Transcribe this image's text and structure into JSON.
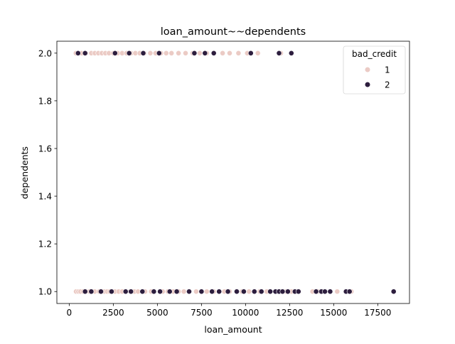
{
  "chart_data": {
    "type": "scatter",
    "title": "loan_amount~~dependents",
    "xlabel": "loan_amount",
    "ylabel": "dependents",
    "xlim": [
      -700,
      19300
    ],
    "ylim": [
      0.95,
      2.05
    ],
    "xticks": [
      0,
      2500,
      5000,
      7500,
      10000,
      12500,
      15000,
      17500
    ],
    "xtick_labels": [
      "0",
      "2500",
      "5000",
      "7500",
      "10000",
      "12500",
      "15000",
      "17500"
    ],
    "yticks": [
      1.0,
      1.2,
      1.4,
      1.6,
      1.8,
      2.0
    ],
    "ytick_labels": [
      "1.0",
      "1.2",
      "1.4",
      "1.6",
      "1.8",
      "2.0"
    ],
    "grid": false,
    "legend": {
      "title": "bad_credit",
      "placement": "top-right",
      "entries": [
        {
          "label": "1",
          "color": "#ebcbc5"
        },
        {
          "label": "2",
          "color": "#2d1e3e"
        }
      ]
    },
    "series": [
      {
        "name": "1",
        "color": "#ebcbc5",
        "x": [
          390,
          520,
          640,
          800,
          960,
          1150,
          1300,
          1450,
          1700,
          1850,
          2000,
          2150,
          2300,
          2600,
          2800,
          3000,
          3200,
          3450,
          3700,
          3900,
          4300,
          4650,
          5300,
          5600,
          5900,
          6200,
          6500,
          6800,
          7200,
          7500,
          7800,
          8200,
          8800,
          9100,
          9500,
          9800,
          10200,
          10500,
          10800,
          11200,
          11700,
          12300,
          12600,
          13800,
          14100,
          15200,
          16000,
          380,
          560,
          700,
          950,
          1250,
          1450,
          1650,
          1850,
          2050,
          2250,
          2500,
          2750,
          3000,
          3250,
          3500,
          3750,
          4000,
          4250,
          4600,
          4900,
          5200,
          5500,
          5800,
          6200,
          6600,
          7000,
          7400,
          7800,
          8200,
          8700,
          9100,
          9600,
          10100,
          10700,
          12000
        ],
        "y": [
          1,
          1,
          1,
          1,
          1,
          1,
          1,
          1,
          1,
          1,
          1,
          1,
          1,
          1,
          1,
          1,
          1,
          1,
          1,
          1,
          1,
          1,
          1,
          1,
          1,
          1,
          1,
          1,
          1,
          1,
          1,
          1,
          1,
          1,
          1,
          1,
          1,
          1,
          1,
          1,
          1,
          1,
          1,
          1,
          1,
          1,
          1,
          2,
          2,
          2,
          2,
          2,
          2,
          2,
          2,
          2,
          2,
          2,
          2,
          2,
          2,
          2,
          2,
          2,
          2,
          2,
          2,
          2,
          2,
          2,
          2,
          2,
          2,
          2,
          2,
          2,
          2,
          2,
          2,
          2,
          2,
          2
        ]
      },
      {
        "name": "2",
        "color": "#2d1e3e",
        "x": [
          900,
          1250,
          1800,
          2400,
          3200,
          3500,
          4150,
          4800,
          5150,
          5700,
          6100,
          6800,
          7500,
          8100,
          8500,
          9000,
          9500,
          9900,
          10500,
          10900,
          11400,
          11700,
          11900,
          12100,
          12400,
          12800,
          13000,
          14000,
          14300,
          14500,
          14800,
          15700,
          15900,
          18400,
          500,
          900,
          2600,
          3400,
          4200,
          5100,
          7100,
          7700,
          8200,
          10300,
          11900,
          12600
        ],
        "y": [
          1,
          1,
          1,
          1,
          1,
          1,
          1,
          1,
          1,
          1,
          1,
          1,
          1,
          1,
          1,
          1,
          1,
          1,
          1,
          1,
          1,
          1,
          1,
          1,
          1,
          1,
          1,
          1,
          1,
          1,
          1,
          1,
          1,
          1,
          2,
          2,
          2,
          2,
          2,
          2,
          2,
          2,
          2,
          2,
          2,
          2
        ]
      }
    ]
  }
}
